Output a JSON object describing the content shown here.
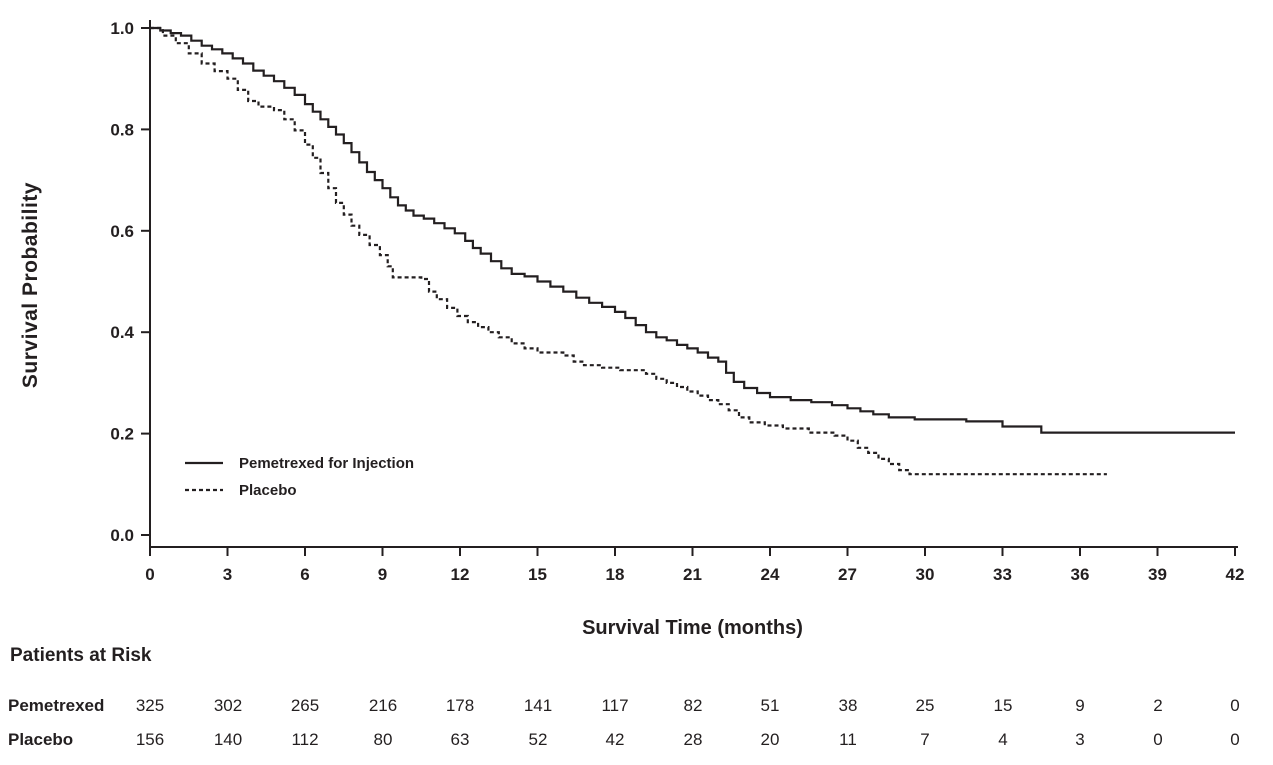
{
  "chart_data": {
    "type": "line",
    "subtype": "kaplan-meier-step",
    "title": "",
    "xlabel": "Survival Time (months)",
    "ylabel": "Survival Probability",
    "xlim": [
      0,
      42
    ],
    "ylim": [
      0.0,
      1.0
    ],
    "x_ticks": [
      0,
      3,
      6,
      9,
      12,
      15,
      18,
      21,
      24,
      27,
      30,
      33,
      36,
      39,
      42
    ],
    "y_ticks": [
      0.0,
      0.2,
      0.4,
      0.6,
      0.8,
      1.0
    ],
    "grid": false,
    "legend_position": "inside-lower-left",
    "ink_color": "#231f20",
    "series": [
      {
        "name": "Pemetrexed for Injection",
        "style": "solid",
        "points": [
          [
            0,
            1.0
          ],
          [
            0.4,
            0.995
          ],
          [
            0.8,
            0.99
          ],
          [
            1.2,
            0.985
          ],
          [
            1.6,
            0.975
          ],
          [
            2.0,
            0.965
          ],
          [
            2.4,
            0.958
          ],
          [
            2.8,
            0.95
          ],
          [
            3.2,
            0.94
          ],
          [
            3.6,
            0.93
          ],
          [
            4.0,
            0.916
          ],
          [
            4.4,
            0.906
          ],
          [
            4.8,
            0.895
          ],
          [
            5.2,
            0.882
          ],
          [
            5.6,
            0.868
          ],
          [
            6.0,
            0.85
          ],
          [
            6.3,
            0.835
          ],
          [
            6.6,
            0.82
          ],
          [
            6.9,
            0.805
          ],
          [
            7.2,
            0.79
          ],
          [
            7.5,
            0.773
          ],
          [
            7.8,
            0.755
          ],
          [
            8.1,
            0.735
          ],
          [
            8.4,
            0.716
          ],
          [
            8.7,
            0.7
          ],
          [
            9.0,
            0.684
          ],
          [
            9.3,
            0.666
          ],
          [
            9.6,
            0.65
          ],
          [
            9.9,
            0.64
          ],
          [
            10.2,
            0.63
          ],
          [
            10.6,
            0.624
          ],
          [
            11.0,
            0.615
          ],
          [
            11.4,
            0.605
          ],
          [
            11.8,
            0.595
          ],
          [
            12.2,
            0.58
          ],
          [
            12.5,
            0.566
          ],
          [
            12.8,
            0.555
          ],
          [
            13.2,
            0.54
          ],
          [
            13.6,
            0.526
          ],
          [
            14.0,
            0.515
          ],
          [
            14.5,
            0.51
          ],
          [
            15.0,
            0.5
          ],
          [
            15.5,
            0.49
          ],
          [
            16.0,
            0.48
          ],
          [
            16.5,
            0.468
          ],
          [
            17.0,
            0.458
          ],
          [
            17.5,
            0.45
          ],
          [
            18.0,
            0.44
          ],
          [
            18.4,
            0.428
          ],
          [
            18.8,
            0.414
          ],
          [
            19.2,
            0.4
          ],
          [
            19.6,
            0.39
          ],
          [
            20.0,
            0.384
          ],
          [
            20.4,
            0.375
          ],
          [
            20.8,
            0.368
          ],
          [
            21.2,
            0.36
          ],
          [
            21.6,
            0.35
          ],
          [
            22.0,
            0.342
          ],
          [
            22.3,
            0.32
          ],
          [
            22.6,
            0.302
          ],
          [
            23.0,
            0.29
          ],
          [
            23.5,
            0.28
          ],
          [
            24.0,
            0.272
          ],
          [
            24.8,
            0.266
          ],
          [
            25.6,
            0.262
          ],
          [
            26.4,
            0.256
          ],
          [
            27.0,
            0.25
          ],
          [
            27.5,
            0.244
          ],
          [
            28.0,
            0.238
          ],
          [
            28.6,
            0.232
          ],
          [
            29.6,
            0.228
          ],
          [
            31.6,
            0.224
          ],
          [
            33.0,
            0.214
          ],
          [
            34.5,
            0.202
          ],
          [
            42.0,
            0.202
          ]
        ]
      },
      {
        "name": "Placebo",
        "style": "dotted",
        "points": [
          [
            0,
            1.0
          ],
          [
            0.5,
            0.985
          ],
          [
            1.0,
            0.97
          ],
          [
            1.5,
            0.95
          ],
          [
            2.0,
            0.93
          ],
          [
            2.5,
            0.915
          ],
          [
            3.0,
            0.9
          ],
          [
            3.4,
            0.878
          ],
          [
            3.8,
            0.856
          ],
          [
            4.2,
            0.845
          ],
          [
            4.8,
            0.838
          ],
          [
            5.2,
            0.82
          ],
          [
            5.6,
            0.798
          ],
          [
            6.0,
            0.77
          ],
          [
            6.3,
            0.744
          ],
          [
            6.6,
            0.714
          ],
          [
            6.9,
            0.684
          ],
          [
            7.2,
            0.655
          ],
          [
            7.5,
            0.632
          ],
          [
            7.8,
            0.61
          ],
          [
            8.1,
            0.592
          ],
          [
            8.5,
            0.572
          ],
          [
            8.9,
            0.552
          ],
          [
            9.2,
            0.53
          ],
          [
            9.4,
            0.508
          ],
          [
            10.5,
            0.505
          ],
          [
            10.8,
            0.48
          ],
          [
            11.1,
            0.465
          ],
          [
            11.5,
            0.448
          ],
          [
            11.9,
            0.432
          ],
          [
            12.3,
            0.42
          ],
          [
            12.7,
            0.41
          ],
          [
            13.1,
            0.4
          ],
          [
            13.5,
            0.39
          ],
          [
            14.0,
            0.378
          ],
          [
            14.5,
            0.368
          ],
          [
            15.0,
            0.36
          ],
          [
            16.0,
            0.354
          ],
          [
            16.4,
            0.342
          ],
          [
            16.8,
            0.335
          ],
          [
            17.5,
            0.33
          ],
          [
            18.2,
            0.325
          ],
          [
            19.2,
            0.318
          ],
          [
            19.6,
            0.308
          ],
          [
            20.0,
            0.3
          ],
          [
            20.4,
            0.292
          ],
          [
            20.8,
            0.283
          ],
          [
            21.2,
            0.275
          ],
          [
            21.6,
            0.266
          ],
          [
            22.0,
            0.258
          ],
          [
            22.4,
            0.246
          ],
          [
            22.8,
            0.232
          ],
          [
            23.2,
            0.222
          ],
          [
            23.8,
            0.216
          ],
          [
            24.5,
            0.21
          ],
          [
            25.5,
            0.202
          ],
          [
            26.5,
            0.196
          ],
          [
            27.0,
            0.186
          ],
          [
            27.4,
            0.172
          ],
          [
            27.8,
            0.162
          ],
          [
            28.2,
            0.15
          ],
          [
            28.6,
            0.14
          ],
          [
            29.0,
            0.128
          ],
          [
            29.4,
            0.12
          ],
          [
            37.0,
            0.118
          ]
        ]
      }
    ]
  },
  "risk_table": {
    "title": "Patients at Risk",
    "time_points": [
      0,
      3,
      6,
      9,
      12,
      15,
      18,
      21,
      24,
      27,
      30,
      33,
      36,
      39,
      42
    ],
    "rows": [
      {
        "label": "Pemetrexed",
        "values": [
          325,
          302,
          265,
          216,
          178,
          141,
          117,
          82,
          51,
          38,
          25,
          15,
          9,
          2,
          0
        ]
      },
      {
        "label": "Placebo",
        "values": [
          156,
          140,
          112,
          80,
          63,
          52,
          42,
          28,
          20,
          11,
          7,
          4,
          3,
          0,
          0
        ]
      }
    ]
  }
}
